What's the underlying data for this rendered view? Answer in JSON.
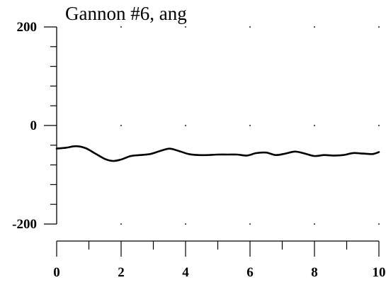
{
  "chart_data": {
    "type": "line",
    "title": "Gannon #6, ang",
    "xlabel": "",
    "ylabel": "",
    "xlim": [
      0,
      10
    ],
    "ylim": [
      -200,
      200
    ],
    "x_ticks": [
      0,
      2,
      4,
      6,
      8,
      10
    ],
    "x_tick_labels": [
      "0",
      "2",
      "4",
      "6",
      "8",
      "10"
    ],
    "y_ticks": [
      200,
      0,
      -200
    ],
    "y_tick_labels": [
      "200",
      "0",
      "-200"
    ],
    "grid": "dotted",
    "series": [
      {
        "x": [
          0,
          0.3,
          0.6,
          0.9,
          1.2,
          1.5,
          1.75,
          2.0,
          2.3,
          2.6,
          2.9,
          3.2,
          3.5,
          3.8,
          4.1,
          4.4,
          4.7,
          5.0,
          5.3,
          5.6,
          5.9,
          6.2,
          6.5,
          6.8,
          7.1,
          7.4,
          7.7,
          8.0,
          8.3,
          8.6,
          8.9,
          9.2,
          9.5,
          9.8,
          10
        ],
        "y": [
          -47,
          -45,
          -42,
          -46,
          -57,
          -68,
          -72,
          -69,
          -62,
          -60,
          -58,
          -52,
          -47,
          -52,
          -58,
          -60,
          -60,
          -59,
          -59,
          -59,
          -61,
          -56,
          -55,
          -60,
          -57,
          -53,
          -57,
          -62,
          -60,
          -61,
          -60,
          -56,
          -57,
          -58,
          -54
        ]
      }
    ]
  }
}
